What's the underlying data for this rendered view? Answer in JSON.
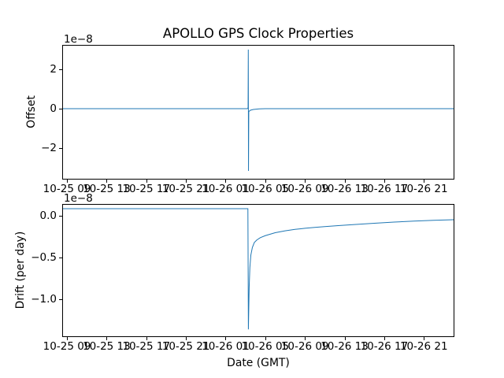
{
  "figure": {
    "title": "APOLLO GPS Clock Properties",
    "background": "#ffffff"
  },
  "chart_data": [
    {
      "type": "line",
      "title": "APOLLO GPS Clock Properties",
      "ylabel": "Offset",
      "xlabel": "",
      "offset_text": "1e−8",
      "x_unit": "hours since 10-25 00:00 GMT",
      "xlim": [
        8.6,
        48.0
      ],
      "ylim": [
        -3.56,
        3.2
      ],
      "grid": false,
      "legend": null,
      "line_color": "#1f77b4",
      "x_ticks": [
        {
          "v": 9,
          "label": "10-25 09"
        },
        {
          "v": 13,
          "label": "10-25 13"
        },
        {
          "v": 17,
          "label": "10-25 17"
        },
        {
          "v": 21,
          "label": "10-25 21"
        },
        {
          "v": 25,
          "label": "10-26 01"
        },
        {
          "v": 29,
          "label": "10-26 05"
        },
        {
          "v": 33,
          "label": "10-26 09"
        },
        {
          "v": 37,
          "label": "10-26 13"
        },
        {
          "v": 41,
          "label": "10-26 17"
        },
        {
          "v": 45,
          "label": "10-26 21"
        }
      ],
      "y_ticks": [
        {
          "v": 2,
          "label": "2"
        },
        {
          "v": 0,
          "label": "0"
        },
        {
          "v": -2,
          "label": "−2"
        }
      ],
      "series": [
        {
          "name": "clock-offset-1e-8",
          "points": [
            [
              8.6,
              0
            ],
            [
              20.0,
              0
            ],
            [
              27.2,
              0
            ],
            [
              27.27,
              0.05
            ],
            [
              27.29,
              3.0
            ],
            [
              27.31,
              -3.16
            ],
            [
              27.34,
              -0.15
            ],
            [
              27.5,
              -0.08
            ],
            [
              27.8,
              -0.04
            ],
            [
              28.4,
              -0.01
            ],
            [
              29.0,
              0
            ],
            [
              38.0,
              0
            ],
            [
              48.0,
              0
            ]
          ]
        }
      ]
    },
    {
      "type": "line",
      "title": "",
      "ylabel": "Drift (per day)",
      "xlabel": "Date (GMT)",
      "offset_text": "1e−8",
      "x_unit": "hours since 10-25 00:00 GMT",
      "xlim": [
        8.6,
        48.0
      ],
      "ylim": [
        -1.443,
        0.132
      ],
      "grid": false,
      "legend": null,
      "line_color": "#1f77b4",
      "x_ticks": [
        {
          "v": 9,
          "label": "10-25 09"
        },
        {
          "v": 13,
          "label": "10-25 13"
        },
        {
          "v": 17,
          "label": "10-25 17"
        },
        {
          "v": 21,
          "label": "10-25 21"
        },
        {
          "v": 25,
          "label": "10-26 01"
        },
        {
          "v": 29,
          "label": "10-26 05"
        },
        {
          "v": 33,
          "label": "10-26 09"
        },
        {
          "v": 37,
          "label": "10-26 13"
        },
        {
          "v": 41,
          "label": "10-26 17"
        },
        {
          "v": 45,
          "label": "10-26 21"
        }
      ],
      "y_ticks": [
        {
          "v": 0.0,
          "label": "0.0"
        },
        {
          "v": -0.5,
          "label": "−0.5"
        },
        {
          "v": -1.0,
          "label": "−1.0"
        }
      ],
      "series": [
        {
          "name": "clock-drift-per-day-1e-8",
          "points": [
            [
              8.6,
              0.085
            ],
            [
              18.0,
              0.085
            ],
            [
              27.25,
              0.085
            ],
            [
              27.3,
              -1.36
            ],
            [
              27.38,
              -0.85
            ],
            [
              27.45,
              -0.62
            ],
            [
              27.55,
              -0.47
            ],
            [
              27.7,
              -0.38
            ],
            [
              27.9,
              -0.32
            ],
            [
              28.15,
              -0.29
            ],
            [
              28.5,
              -0.262
            ],
            [
              29.0,
              -0.238
            ],
            [
              30.0,
              -0.203
            ],
            [
              31.0,
              -0.18
            ],
            [
              32.0,
              -0.163
            ],
            [
              33.0,
              -0.15
            ],
            [
              34.0,
              -0.139
            ],
            [
              35.0,
              -0.13
            ],
            [
              36.5,
              -0.117
            ],
            [
              38.0,
              -0.105
            ],
            [
              40.0,
              -0.09
            ],
            [
              42.0,
              -0.076
            ],
            [
              44.0,
              -0.064
            ],
            [
              46.0,
              -0.054
            ],
            [
              48.0,
              -0.047
            ]
          ]
        }
      ]
    }
  ]
}
